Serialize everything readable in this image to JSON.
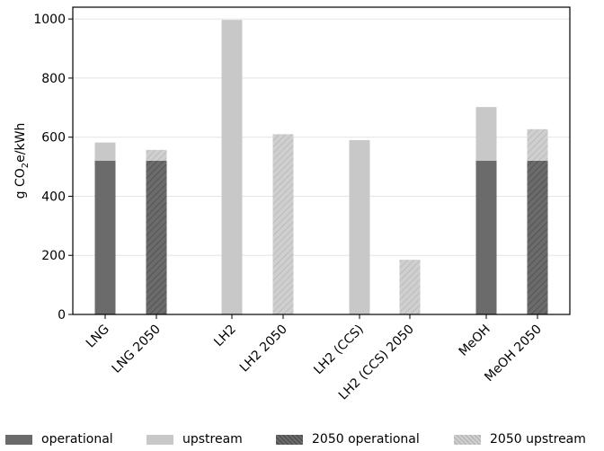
{
  "chart_data": {
    "type": "bar",
    "stacked": true,
    "categories": [
      "LNG",
      "LNG 2050",
      "LH2",
      "LH2 2050",
      "LH2 (CCS)",
      "LH2 (CCS) 2050",
      "MeOH",
      "MeOH 2050"
    ],
    "series": [
      {
        "name": "operational",
        "values": [
          520,
          null,
          0,
          null,
          0,
          null,
          520,
          null
        ],
        "color": "#6b6b6b",
        "pattern": "solid"
      },
      {
        "name": "upstream",
        "values": [
          62,
          null,
          997,
          null,
          590,
          null,
          182,
          null
        ],
        "color": "#c8c8c8",
        "pattern": "solid"
      },
      {
        "name": "2050 operational",
        "values": [
          null,
          520,
          null,
          0,
          null,
          0,
          null,
          520
        ],
        "color": "#6b6b6b",
        "pattern": "hatched"
      },
      {
        "name": "2050 upstream",
        "values": [
          null,
          37,
          null,
          610,
          null,
          185,
          null,
          107
        ],
        "color": "#c8c8c8",
        "pattern": "hatched"
      }
    ],
    "ylabel_prefix": "g CO",
    "ylabel_sub": "2",
    "ylabel_suffix": "e/kWh",
    "ylim": [
      0,
      1040
    ],
    "yticks": [
      0,
      200,
      400,
      600,
      800,
      1000
    ],
    "grid": "horizontal",
    "legend_position": "bottom"
  }
}
